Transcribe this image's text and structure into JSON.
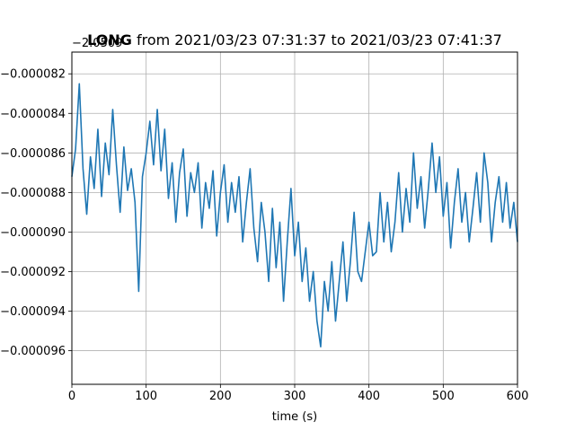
{
  "chart_data": {
    "type": "line",
    "title_bold": "LONG",
    "title_rest": " from 2021/03/23 07:31:37 to 2021/03/23 07:41:37",
    "offset_text": "−2.0509",
    "xlabel": "time (s)",
    "ylabel": "",
    "xlim": [
      0,
      600
    ],
    "ylim": [
      -9.77e-05,
      -8.09e-05
    ],
    "x_ticks": [
      0,
      100,
      200,
      300,
      400,
      500,
      600
    ],
    "x_tick_labels": [
      "0",
      "100",
      "200",
      "300",
      "400",
      "500",
      "600"
    ],
    "y_ticks": [
      -8.2e-05,
      -8.4e-05,
      -8.6e-05,
      -8.8e-05,
      -9e-05,
      -9.2e-05,
      -9.4e-05,
      -9.6e-05
    ],
    "y_tick_labels": [
      "−0.000082",
      "−0.000084",
      "−0.000086",
      "−0.000088",
      "−0.000090",
      "−0.000092",
      "−0.000094",
      "−0.000096"
    ],
    "grid": true,
    "line_color": "#1f77b4",
    "series": [
      {
        "x": [
          0,
          5,
          10,
          15,
          20,
          25,
          30,
          35,
          40,
          45,
          50,
          55,
          60,
          65,
          70,
          75,
          80,
          85,
          90,
          95,
          100,
          105,
          110,
          115,
          120,
          125,
          130,
          135,
          140,
          145,
          150,
          155,
          160,
          165,
          170,
          175,
          180,
          185,
          190,
          195,
          200,
          205,
          210,
          215,
          220,
          225,
          230,
          235,
          240,
          245,
          250,
          255,
          260,
          265,
          270,
          275,
          280,
          285,
          290,
          295,
          300,
          305,
          310,
          315,
          320,
          325,
          330,
          335,
          340,
          345,
          350,
          355,
          360,
          365,
          370,
          375,
          380,
          385,
          390,
          395,
          400,
          405,
          410,
          415,
          420,
          425,
          430,
          435,
          440,
          445,
          450,
          455,
          460,
          465,
          470,
          475,
          480,
          485,
          490,
          495,
          500,
          505,
          510,
          515,
          520,
          525,
          530,
          535,
          540,
          545,
          550,
          555,
          560,
          565,
          570,
          575,
          580,
          585,
          590,
          595,
          600
        ],
        "y": [
          -8.72e-05,
          -8.58e-05,
          -8.25e-05,
          -8.68e-05,
          -8.91e-05,
          -8.62e-05,
          -8.78e-05,
          -8.48e-05,
          -8.82e-05,
          -8.55e-05,
          -8.71e-05,
          -8.38e-05,
          -8.66e-05,
          -8.9e-05,
          -8.57e-05,
          -8.79e-05,
          -8.68e-05,
          -8.85e-05,
          -9.3e-05,
          -8.72e-05,
          -8.6e-05,
          -8.44e-05,
          -8.66e-05,
          -8.38e-05,
          -8.69e-05,
          -8.48e-05,
          -8.83e-05,
          -8.65e-05,
          -8.95e-05,
          -8.7e-05,
          -8.58e-05,
          -8.92e-05,
          -8.7e-05,
          -8.8e-05,
          -8.65e-05,
          -8.98e-05,
          -8.75e-05,
          -8.88e-05,
          -8.69e-05,
          -9.02e-05,
          -8.8e-05,
          -8.66e-05,
          -8.95e-05,
          -8.75e-05,
          -8.9e-05,
          -8.72e-05,
          -9.05e-05,
          -8.85e-05,
          -8.68e-05,
          -8.98e-05,
          -9.15e-05,
          -8.85e-05,
          -9e-05,
          -9.25e-05,
          -8.88e-05,
          -9.18e-05,
          -8.95e-05,
          -9.35e-05,
          -9.05e-05,
          -8.78e-05,
          -9.12e-05,
          -8.95e-05,
          -9.25e-05,
          -9.08e-05,
          -9.35e-05,
          -9.2e-05,
          -9.45e-05,
          -9.58e-05,
          -9.25e-05,
          -9.4e-05,
          -9.15e-05,
          -9.45e-05,
          -9.25e-05,
          -9.05e-05,
          -9.35e-05,
          -9.15e-05,
          -8.9e-05,
          -9.2e-05,
          -9.25e-05,
          -9.1e-05,
          -8.95e-05,
          -9.12e-05,
          -9.1e-05,
          -8.8e-05,
          -9.05e-05,
          -8.85e-05,
          -9.1e-05,
          -8.95e-05,
          -8.7e-05,
          -9e-05,
          -8.78e-05,
          -8.95e-05,
          -8.6e-05,
          -8.88e-05,
          -8.72e-05,
          -8.98e-05,
          -8.78e-05,
          -8.55e-05,
          -8.8e-05,
          -8.62e-05,
          -8.92e-05,
          -8.75e-05,
          -9.08e-05,
          -8.85e-05,
          -8.68e-05,
          -8.95e-05,
          -8.8e-05,
          -9.05e-05,
          -8.88e-05,
          -8.7e-05,
          -8.95e-05,
          -8.6e-05,
          -8.75e-05,
          -9.05e-05,
          -8.85e-05,
          -8.72e-05,
          -8.95e-05,
          -8.75e-05,
          -8.98e-05,
          -8.85e-05,
          -9.05e-05
        ]
      }
    ]
  }
}
